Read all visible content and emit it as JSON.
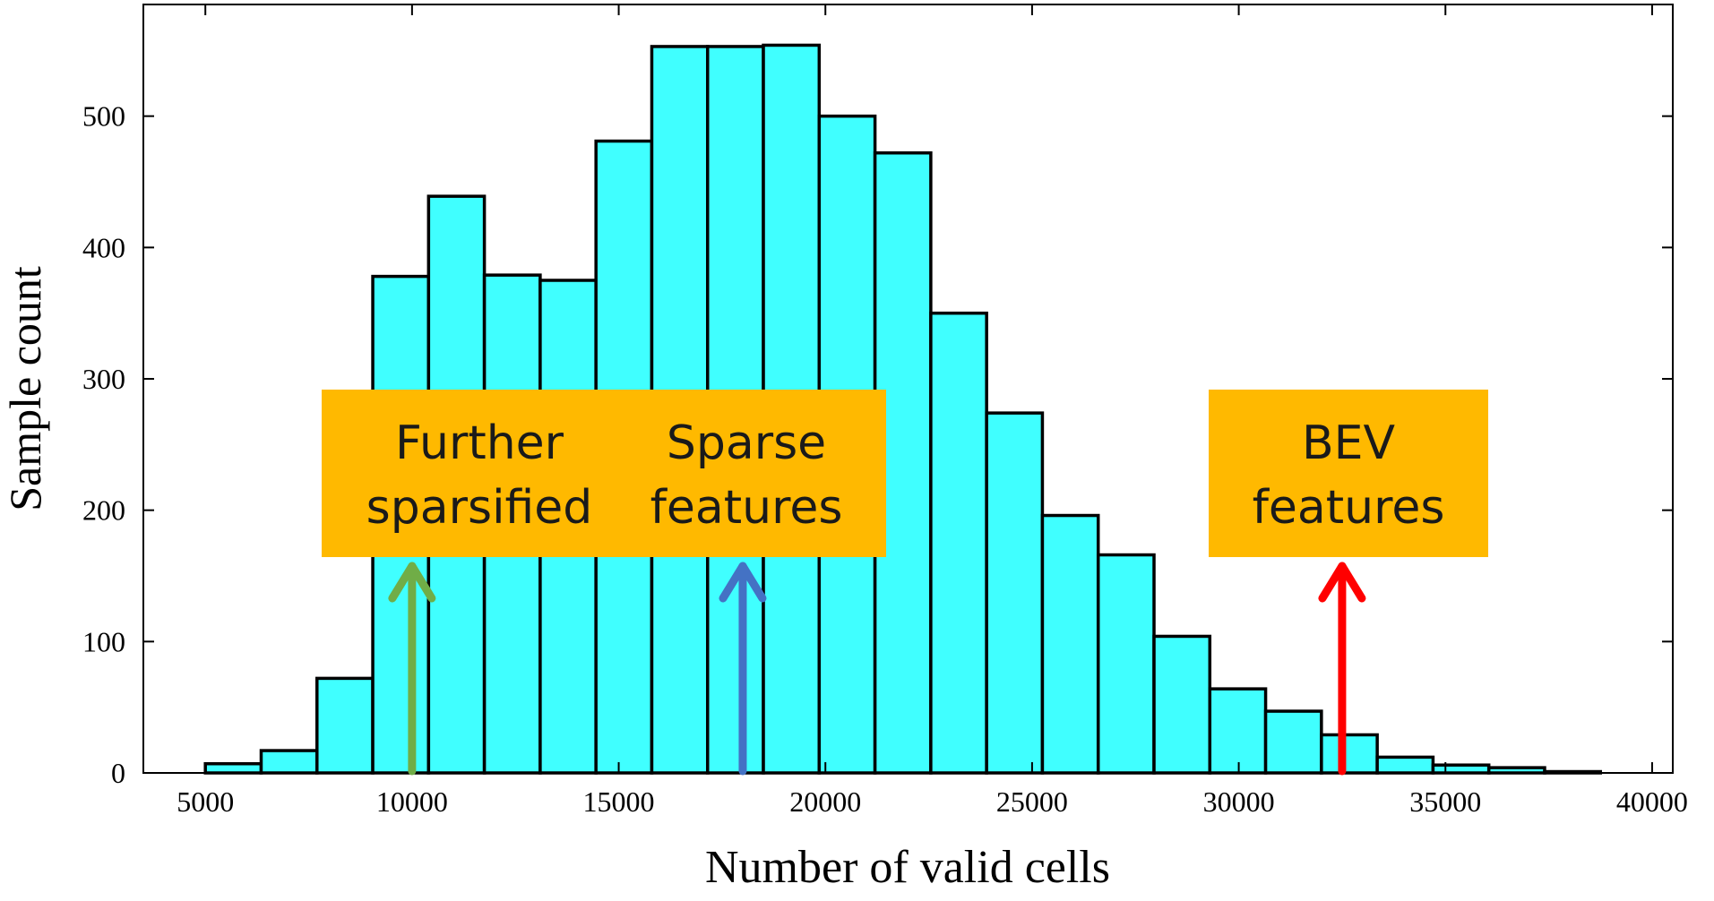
{
  "chart_data": {
    "type": "bar",
    "subtype": "histogram",
    "xlabel": "Number of valid cells",
    "ylabel": "Sample count",
    "xlim": [
      3500,
      40500
    ],
    "ylim": [
      0,
      585
    ],
    "x_ticks": [
      5000,
      10000,
      15000,
      20000,
      25000,
      30000,
      35000,
      40000
    ],
    "y_ticks": [
      0,
      100,
      200,
      300,
      400,
      500
    ],
    "bin_start": 5000,
    "bin_width": 1350,
    "values": [
      7,
      17,
      72,
      378,
      439,
      379,
      375,
      481,
      553,
      553,
      554,
      500,
      472,
      350,
      274,
      196,
      166,
      104,
      64,
      47,
      29,
      12,
      6,
      4,
      1
    ],
    "bar_color": "#40ffff",
    "annotations": [
      {
        "name": "further-sparsified",
        "lines": [
          "Further",
          "sparsified"
        ],
        "x": 10000,
        "arrow_color": "#70ad47"
      },
      {
        "name": "sparse-features",
        "lines": [
          "Sparse",
          "features"
        ],
        "x": 18000,
        "arrow_color": "#4472c4"
      },
      {
        "name": "bev-features",
        "lines": [
          "BEV",
          "features"
        ],
        "x": 32500,
        "arrow_color": "#ff0000"
      }
    ],
    "callout_fill": "#ffb900"
  }
}
